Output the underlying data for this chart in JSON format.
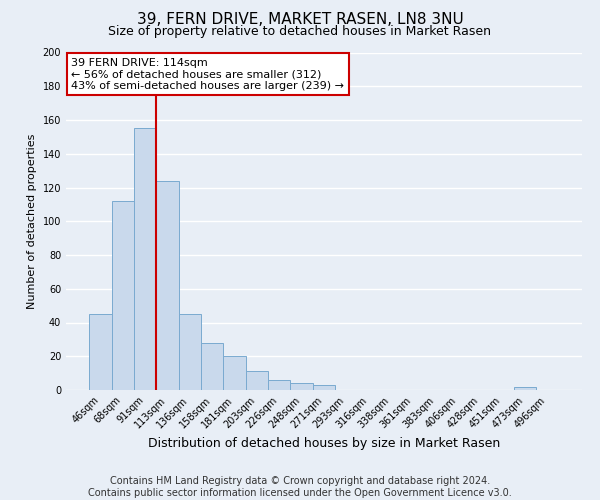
{
  "title": "39, FERN DRIVE, MARKET RASEN, LN8 3NU",
  "subtitle": "Size of property relative to detached houses in Market Rasen",
  "xlabel": "Distribution of detached houses by size in Market Rasen",
  "ylabel": "Number of detached properties",
  "bar_values": [
    45,
    112,
    155,
    124,
    45,
    28,
    20,
    11,
    6,
    4,
    3,
    0,
    0,
    0,
    0,
    0,
    0,
    0,
    0,
    2,
    0
  ],
  "bar_labels": [
    "46sqm",
    "68sqm",
    "91sqm",
    "113sqm",
    "136sqm",
    "158sqm",
    "181sqm",
    "203sqm",
    "226sqm",
    "248sqm",
    "271sqm",
    "293sqm",
    "316sqm",
    "338sqm",
    "361sqm",
    "383sqm",
    "406sqm",
    "428sqm",
    "451sqm",
    "473sqm",
    "496sqm"
  ],
  "bar_color": "#c9d9ec",
  "bar_edge_color": "#7aaad0",
  "vline_index": 3,
  "vline_color": "#cc0000",
  "ylim": [
    0,
    200
  ],
  "yticks": [
    0,
    20,
    40,
    60,
    80,
    100,
    120,
    140,
    160,
    180,
    200
  ],
  "annotation_title": "39 FERN DRIVE: 114sqm",
  "annotation_line1": "← 56% of detached houses are smaller (312)",
  "annotation_line2": "43% of semi-detached houses are larger (239) →",
  "annotation_box_facecolor": "#ffffff",
  "annotation_box_edgecolor": "#cc0000",
  "footer_line1": "Contains HM Land Registry data © Crown copyright and database right 2024.",
  "footer_line2": "Contains public sector information licensed under the Open Government Licence v3.0.",
  "background_color": "#e8eef6",
  "grid_color": "#ffffff",
  "title_fontsize": 11,
  "subtitle_fontsize": 9,
  "xlabel_fontsize": 9,
  "ylabel_fontsize": 8,
  "tick_fontsize": 7,
  "annotation_fontsize": 8,
  "footer_fontsize": 7
}
